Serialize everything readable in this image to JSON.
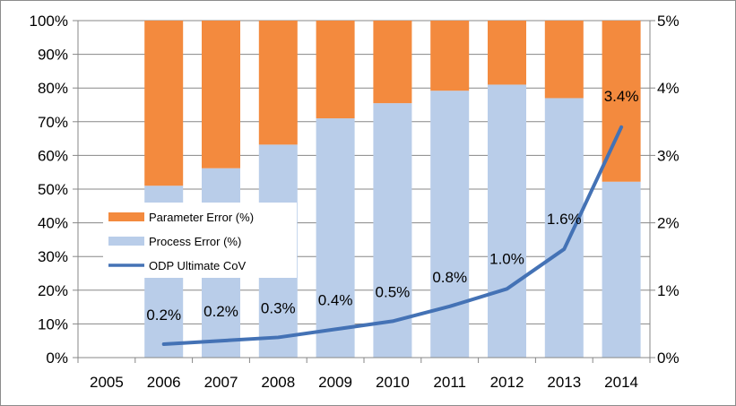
{
  "chart_data": {
    "type": "bar",
    "stacked": true,
    "categories": [
      "2005",
      "2006",
      "2007",
      "2008",
      "2009",
      "2010",
      "2011",
      "2012",
      "2013",
      "2014"
    ],
    "series": [
      {
        "name": "Process Error (%)",
        "type": "bar",
        "axis": "left",
        "color": "#b9cde9",
        "values": [
          null,
          51,
          56.2,
          63.2,
          71,
          75.5,
          79.2,
          81,
          77,
          52.2
        ]
      },
      {
        "name": "Parameter Error (%)",
        "type": "bar",
        "axis": "left",
        "color": "#f38a3e",
        "values": [
          null,
          49,
          43.8,
          36.8,
          29,
          24.5,
          20.8,
          19,
          23,
          47.8
        ]
      },
      {
        "name": "ODP Ultimate CoV",
        "type": "line",
        "axis": "right",
        "color": "#4472b5",
        "values": [
          null,
          0.2,
          0.25,
          0.3,
          0.42,
          0.54,
          0.76,
          1.02,
          1.61,
          3.42
        ],
        "labels": [
          "",
          "0.2%",
          "0.2%",
          "0.3%",
          "0.4%",
          "0.5%",
          "0.8%",
          "1.0%",
          "1.6%",
          "3.4%"
        ]
      }
    ],
    "y_left": {
      "ylim": [
        0,
        100
      ],
      "ticks": [
        "0%",
        "10%",
        "20%",
        "30%",
        "40%",
        "50%",
        "60%",
        "70%",
        "80%",
        "90%",
        "100%"
      ]
    },
    "y_right": {
      "ylim": [
        0,
        5
      ],
      "ticks": [
        "0%",
        "1%",
        "2%",
        "3%",
        "4%",
        "5%"
      ]
    },
    "grid": true,
    "legend": {
      "position": "left-middle",
      "entries": [
        "Parameter Error (%)",
        "Process Error (%)",
        "ODP Ultimate CoV"
      ]
    }
  }
}
